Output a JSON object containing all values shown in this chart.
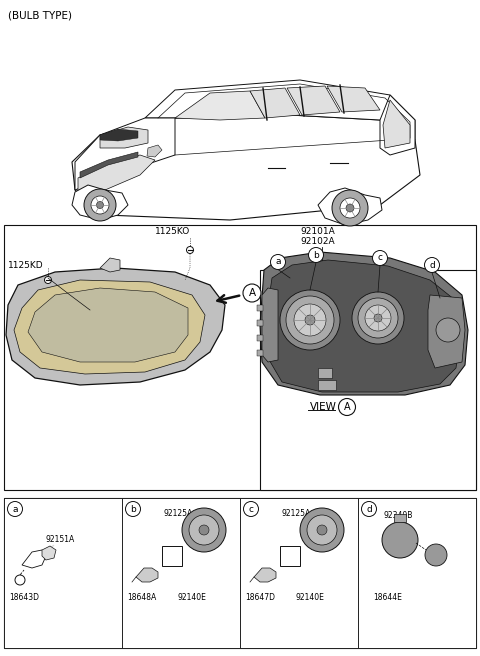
{
  "title": "(BULB TYPE)",
  "bg": "#ffffff",
  "part_1125KD": "1125KD",
  "part_1125KO": "1125KO",
  "part_92101A": "92101A",
  "part_92102A": "92102A",
  "view_label": "VIEW",
  "sec_labels": [
    "a",
    "b",
    "c",
    "d"
  ],
  "sec_a": [
    "92151A",
    "18643D"
  ],
  "sec_b": [
    "92125A",
    "92140E",
    "18648A"
  ],
  "sec_c": [
    "92125A",
    "92140E",
    "18647D"
  ],
  "sec_d": [
    "92340B",
    "18644E"
  ],
  "car_color": "#ffffff",
  "car_line": "#111111",
  "hl_gray1": "#c0c0c0",
  "hl_gray2": "#b0b0b0",
  "hl_amber": "#d4c898",
  "rear_dark": "#888888",
  "rear_mid": "#666666",
  "cap_gray": "#999999",
  "cap_inner": "#bbbbbb"
}
